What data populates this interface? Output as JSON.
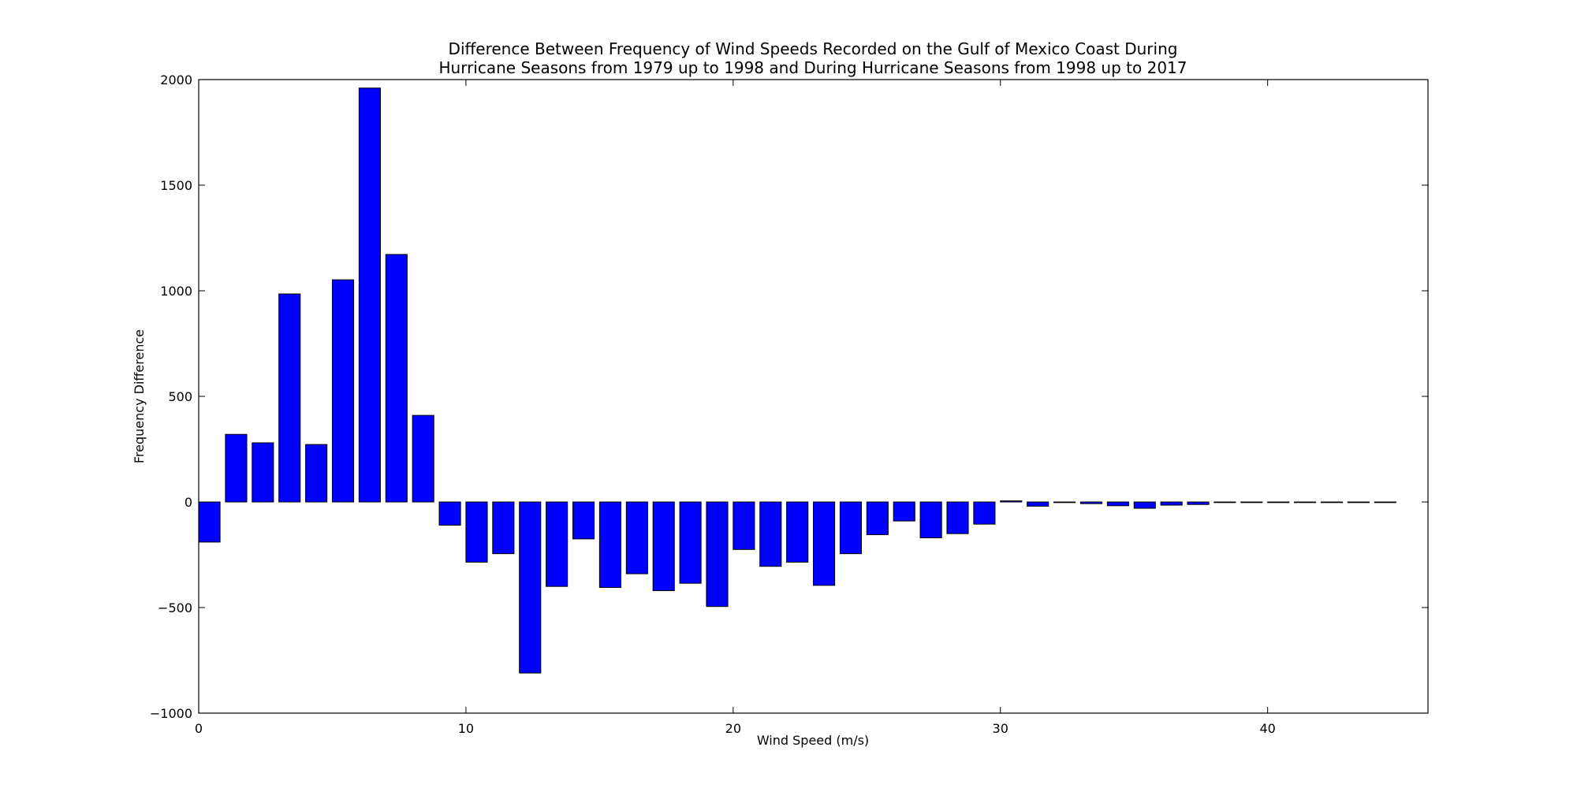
{
  "chart_data": {
    "type": "bar",
    "title_lines": [
      "Difference Between Frequency of Wind Speeds Recorded on the Gulf of Mexico Coast During",
      "Hurricane Seasons from 1979 up to 1998 and During Hurricane Seasons from 1998 up to 2017"
    ],
    "xlabel": "Wind Speed (m/s)",
    "ylabel": "Frequency Difference",
    "xlim": [
      0,
      46
    ],
    "ylim": [
      -1000,
      2000
    ],
    "xticks": [
      0,
      10,
      20,
      30,
      40
    ],
    "xtick_labels": [
      "0",
      "10",
      "20",
      "30",
      "40"
    ],
    "yticks": [
      -1000,
      -500,
      0,
      500,
      1000,
      1500,
      2000
    ],
    "ytick_labels": [
      "−1000",
      "−500",
      "0",
      "500",
      "1000",
      "1500",
      "2000"
    ],
    "bar_width": 0.8,
    "bar_color": "#0000ff",
    "bar_edge_color": "#000000",
    "grid": false,
    "x": [
      0,
      1,
      2,
      3,
      4,
      5,
      6,
      7,
      8,
      9,
      10,
      11,
      12,
      13,
      14,
      15,
      16,
      17,
      18,
      19,
      20,
      21,
      22,
      23,
      24,
      25,
      26,
      27,
      28,
      29,
      30,
      31,
      32,
      33,
      34,
      35,
      36,
      37,
      38,
      39,
      40,
      41,
      42,
      43,
      44
    ],
    "values": [
      -190,
      320,
      280,
      985,
      272,
      1052,
      1960,
      1172,
      410,
      -110,
      -285,
      -245,
      -810,
      -400,
      -175,
      -405,
      -340,
      -420,
      -385,
      -495,
      -225,
      -305,
      -285,
      -395,
      -245,
      -155,
      -90,
      -170,
      -150,
      -105,
      5,
      -20,
      -3,
      -8,
      -18,
      -30,
      -15,
      -12,
      -2,
      -2,
      -2,
      -2,
      -2,
      -2,
      -2
    ]
  }
}
